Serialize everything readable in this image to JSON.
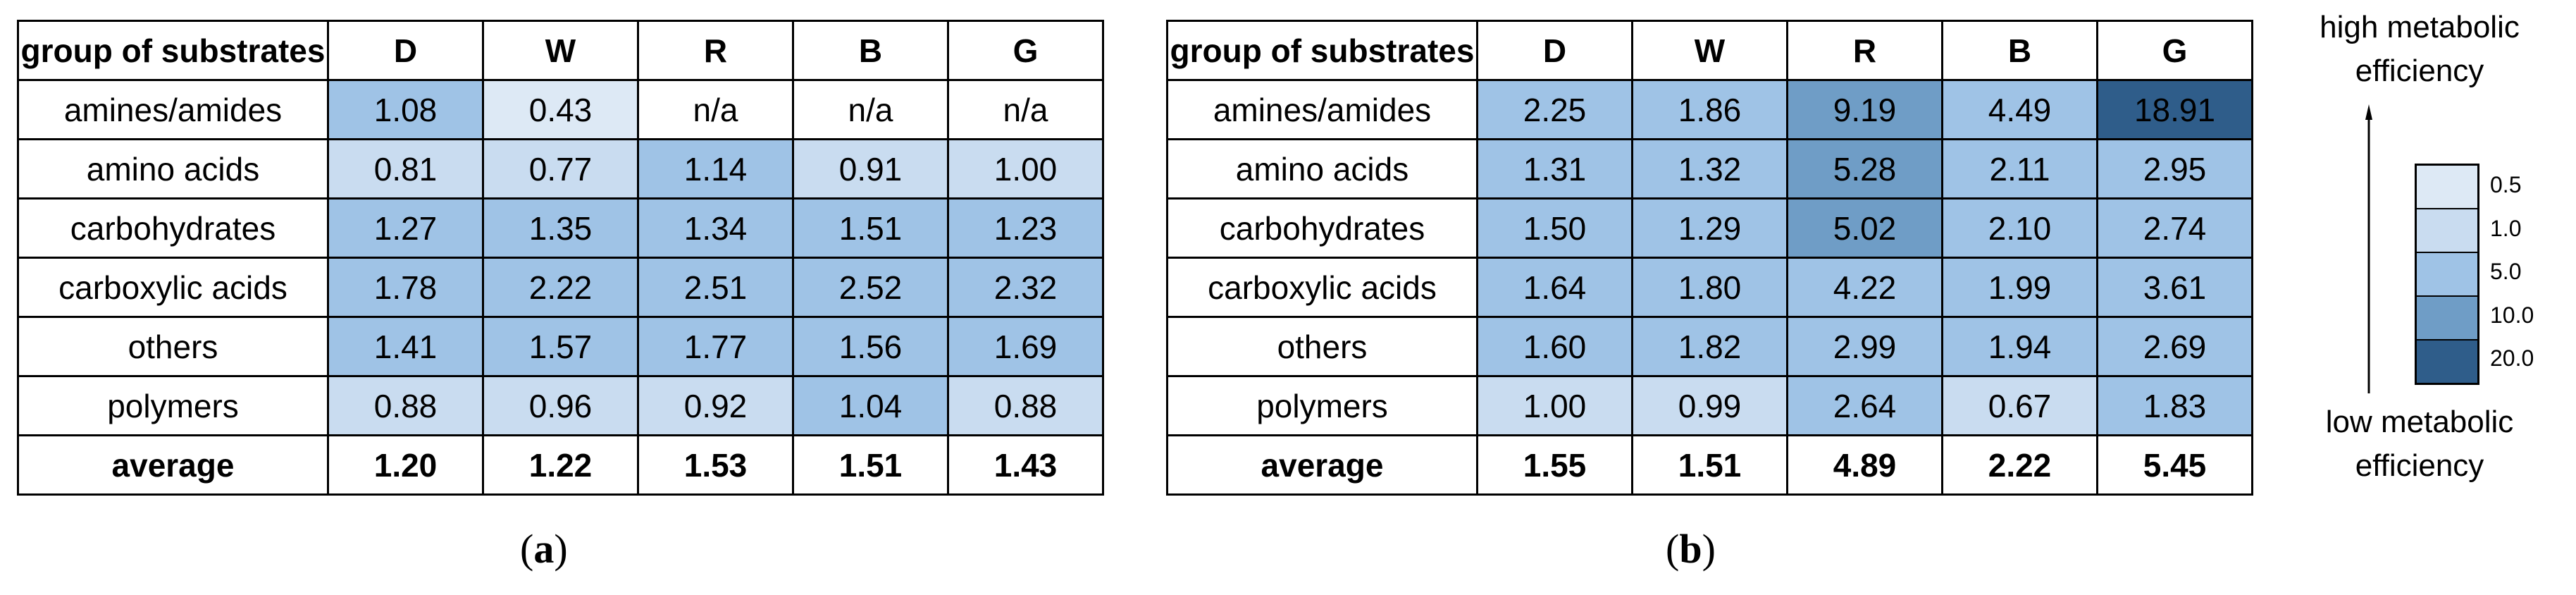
{
  "chart_data": [
    {
      "type": "heatmap",
      "panel": "(a)",
      "columns": [
        "group of substrates",
        "D",
        "W",
        "R",
        "B",
        "G"
      ],
      "rows": [
        {
          "label": "amines/amides",
          "values": [
            "1.08",
            "0.43",
            "n/a",
            "n/a",
            "n/a"
          ]
        },
        {
          "label": "amino acids",
          "values": [
            "0.81",
            "0.77",
            "1.14",
            "0.91",
            "1.00"
          ]
        },
        {
          "label": "carbohydrates",
          "values": [
            "1.27",
            "1.35",
            "1.34",
            "1.51",
            "1.23"
          ]
        },
        {
          "label": "carboxylic acids",
          "values": [
            "1.78",
            "2.22",
            "2.51",
            "2.52",
            "2.32"
          ]
        },
        {
          "label": "others",
          "values": [
            "1.41",
            "1.57",
            "1.77",
            "1.56",
            "1.69"
          ]
        },
        {
          "label": "polymers",
          "values": [
            "0.88",
            "0.96",
            "0.92",
            "1.04",
            "0.88"
          ]
        }
      ],
      "average": {
        "label": "average",
        "values": [
          "1.20",
          "1.22",
          "1.53",
          "1.51",
          "1.43"
        ]
      }
    },
    {
      "type": "heatmap",
      "panel": "(b)",
      "columns": [
        "group of substrates",
        "D",
        "W",
        "R",
        "B",
        "G"
      ],
      "rows": [
        {
          "label": "amines/amides",
          "values": [
            "2.25",
            "1.86",
            "9.19",
            "4.49",
            "18.91"
          ]
        },
        {
          "label": "amino acids",
          "values": [
            "1.31",
            "1.32",
            "5.28",
            "2.11",
            "2.95"
          ]
        },
        {
          "label": "carbohydrates",
          "values": [
            "1.50",
            "1.29",
            "5.02",
            "2.10",
            "2.74"
          ]
        },
        {
          "label": "carboxylic acids",
          "values": [
            "1.64",
            "1.80",
            "4.22",
            "1.99",
            "3.61"
          ]
        },
        {
          "label": "others",
          "values": [
            "1.60",
            "1.82",
            "2.99",
            "1.94",
            "2.69"
          ]
        },
        {
          "label": "polymers",
          "values": [
            "1.00",
            "0.99",
            "2.64",
            "0.67",
            "1.83"
          ]
        }
      ],
      "average": {
        "label": "average",
        "values": [
          "1.55",
          "1.51",
          "4.89",
          "2.22",
          "5.45"
        ]
      }
    }
  ],
  "captions": {
    "a": "a",
    "b": "b"
  },
  "legend": {
    "top_text_1": "high metabolic",
    "top_text_2": "efficiency",
    "bottom_text_1": "low metabolic",
    "bottom_text_2": "efficiency",
    "levels": [
      {
        "label": "0.5",
        "color": "#dde9f5"
      },
      {
        "label": "1.0",
        "color": "#c9dcf0"
      },
      {
        "label": "5.0",
        "color": "#9fc3e6"
      },
      {
        "label": "10.0",
        "color": "#6f9dc6"
      },
      {
        "label": "20.0",
        "color": "#2f5d8a"
      }
    ]
  }
}
